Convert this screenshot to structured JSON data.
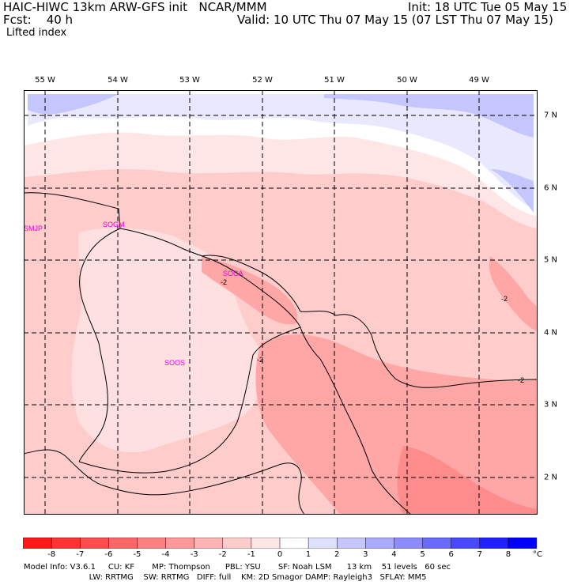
{
  "header": {
    "line1_left": "HAIC-HIWC 13km ARW-GFS init   NCAR/MMM",
    "line1_right": "Init: 18 UTC Tue 05 May 15",
    "line2_left": "Fcst:    40 h",
    "line2_right": "Valid: 10 UTC Thu 07 May 15 (07 LST Thu 07 May 15)",
    "field": "Lifted index"
  },
  "axes": {
    "lon_labels": [
      "55 W",
      "54 W",
      "53 W",
      "52 W",
      "51 W",
      "50 W",
      "49 W"
    ],
    "lat_labels": [
      "7 N",
      "6 N",
      "5 N",
      "4 N",
      "3 N",
      "2 N"
    ]
  },
  "stations": [
    "SMJP",
    "SOGM",
    "SOCA",
    "SOOS"
  ],
  "contour_labels": [
    "-2",
    "-2",
    "-2",
    "-2"
  ],
  "colorbar": {
    "levels": [
      "-8",
      "-7",
      "-6",
      "-5",
      "-4",
      "-3",
      "-2",
      "-1",
      "0",
      "1",
      "2",
      "3",
      "4",
      "5",
      "6",
      "7",
      "8"
    ],
    "unit": "°C",
    "colors": [
      "#ff1a1a",
      "#ff3333",
      "#ff4d4d",
      "#ff6666",
      "#ff8080",
      "#ff9999",
      "#ffb3b3",
      "#ffcccc",
      "#ffe6e6",
      "#ffffff",
      "#e0e0ff",
      "#c6c6ff",
      "#aaaaff",
      "#8c8cff",
      "#6a6aff",
      "#4848ff",
      "#2020ff",
      "#0000ff"
    ]
  },
  "footer": {
    "line1": "Model Info: V3.6.1     CU: KF       MP: Thompson      PBL: YSU       SF: Noah LSM      13 km    51 levels   60 sec",
    "line2": "                          LW: RRTMG    SW: RRTMG   DIFF: full    KM: 2D Smagor DAMP: Rayleigh3   SFLAY: MM5"
  }
}
